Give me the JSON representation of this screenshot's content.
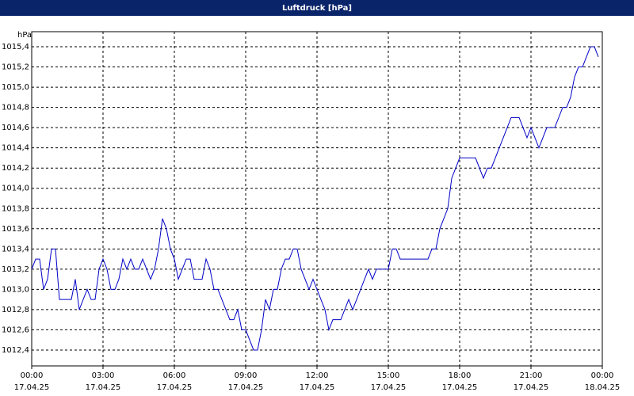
{
  "chart_data": {
    "type": "line",
    "title": "Luftdruck [hPa]",
    "y_label": "hPa",
    "x": [
      0,
      10,
      20,
      30,
      40,
      50,
      60,
      70,
      100,
      110,
      120,
      140,
      150,
      160,
      170,
      180,
      190,
      200,
      210,
      220,
      230,
      240,
      250,
      260,
      270,
      280,
      290,
      300,
      310,
      320,
      330,
      340,
      350,
      360,
      370,
      380,
      390,
      400,
      410,
      430,
      440,
      450,
      460,
      470,
      480,
      490,
      500,
      510,
      520,
      530,
      540,
      550,
      560,
      570,
      580,
      590,
      600,
      610,
      620,
      630,
      640,
      650,
      660,
      670,
      680,
      690,
      700,
      710,
      720,
      730,
      740,
      750,
      760,
      780,
      790,
      800,
      810,
      820,
      830,
      840,
      850,
      860,
      870,
      900,
      910,
      920,
      930,
      1000,
      1010,
      1020,
      1030,
      1040,
      1050,
      1060,
      1070,
      1080,
      1120,
      1130,
      1140,
      1150,
      1160,
      1170,
      1180,
      1190,
      1200,
      1210,
      1230,
      1240,
      1250,
      1260,
      1270,
      1280,
      1290,
      1300,
      1320,
      1330,
      1340,
      1350,
      1360,
      1370,
      1380,
      1390,
      1400,
      1410,
      1420,
      1430
    ],
    "series": [
      {
        "name": "Luftdruck",
        "color": "#0000c8",
        "values": [
          1013.2,
          1013.3,
          1013.3,
          1013.0,
          1013.1,
          1013.4,
          1013.4,
          1012.9,
          1012.9,
          1013.1,
          1012.8,
          1013.0,
          1012.9,
          1012.9,
          1013.2,
          1013.3,
          1013.2,
          1013.0,
          1013.0,
          1013.1,
          1013.3,
          1013.2,
          1013.3,
          1013.2,
          1013.2,
          1013.3,
          1013.2,
          1013.1,
          1013.2,
          1013.4,
          1013.7,
          1013.6,
          1013.4,
          1013.3,
          1013.1,
          1013.2,
          1013.3,
          1013.3,
          1013.1,
          1013.1,
          1013.3,
          1013.2,
          1013.0,
          1013.0,
          1012.9,
          1012.8,
          1012.7,
          1012.7,
          1012.8,
          1012.6,
          1012.6,
          1012.5,
          1012.4,
          1012.4,
          1012.6,
          1012.9,
          1012.8,
          1013.0,
          1013.0,
          1013.2,
          1013.3,
          1013.3,
          1013.4,
          1013.4,
          1013.2,
          1013.1,
          1013.0,
          1013.1,
          1013.0,
          1012.9,
          1012.8,
          1012.6,
          1012.7,
          1012.7,
          1012.8,
          1012.9,
          1012.8,
          1012.9,
          1013.0,
          1013.1,
          1013.2,
          1013.1,
          1013.2,
          1013.2,
          1013.4,
          1013.4,
          1013.3,
          1013.3,
          1013.4,
          1013.4,
          1013.6,
          1013.7,
          1013.8,
          1014.1,
          1014.2,
          1014.3,
          1014.3,
          1014.2,
          1014.1,
          1014.2,
          1014.2,
          1014.3,
          1014.4,
          1014.5,
          1014.6,
          1014.7,
          1014.7,
          1014.6,
          1014.5,
          1014.6,
          1014.5,
          1014.4,
          1014.5,
          1014.6,
          1014.6,
          1014.7,
          1014.8,
          1014.8,
          1014.9,
          1015.1,
          1015.2,
          1015.2,
          1015.3,
          1015.4,
          1015.4,
          1015.3
        ]
      }
    ],
    "xlim": [
      0,
      1440
    ],
    "xticks": [
      {
        "value": 0,
        "label": "00:00",
        "date": "17.04.25"
      },
      {
        "value": 180,
        "label": "03:00",
        "date": "17.04.25"
      },
      {
        "value": 360,
        "label": "06:00",
        "date": "17.04.25"
      },
      {
        "value": 540,
        "label": "09:00",
        "date": "17.04.25"
      },
      {
        "value": 720,
        "label": "12:00",
        "date": "17.04.25"
      },
      {
        "value": 900,
        "label": "15:00",
        "date": "17.04.25"
      },
      {
        "value": 1080,
        "label": "18:00",
        "date": "17.04.25"
      },
      {
        "value": 1260,
        "label": "21:00",
        "date": "17.04.25"
      },
      {
        "value": 1440,
        "label": "00:00",
        "date": "18.04.25"
      }
    ],
    "ylim": [
      1012.243,
      1015.549
    ],
    "yticks": [
      {
        "value": 1012.4,
        "label": "1012,4"
      },
      {
        "value": 1012.6,
        "label": "1012,6"
      },
      {
        "value": 1012.8,
        "label": "1012,8"
      },
      {
        "value": 1013.0,
        "label": "1013,0"
      },
      {
        "value": 1013.2,
        "label": "1013,2"
      },
      {
        "value": 1013.4,
        "label": "1013,4"
      },
      {
        "value": 1013.6,
        "label": "1013,6"
      },
      {
        "value": 1013.8,
        "label": "1013,8"
      },
      {
        "value": 1014.0,
        "label": "1014,0"
      },
      {
        "value": 1014.2,
        "label": "1014,2"
      },
      {
        "value": 1014.4,
        "label": "1014,4"
      },
      {
        "value": 1014.6,
        "label": "1014,6"
      },
      {
        "value": 1014.8,
        "label": "1014,8"
      },
      {
        "value": 1015.0,
        "label": "1015,0"
      },
      {
        "value": 1015.2,
        "label": "1015,2"
      },
      {
        "value": 1015.4,
        "label": "1015,4"
      }
    ],
    "grid": true
  }
}
